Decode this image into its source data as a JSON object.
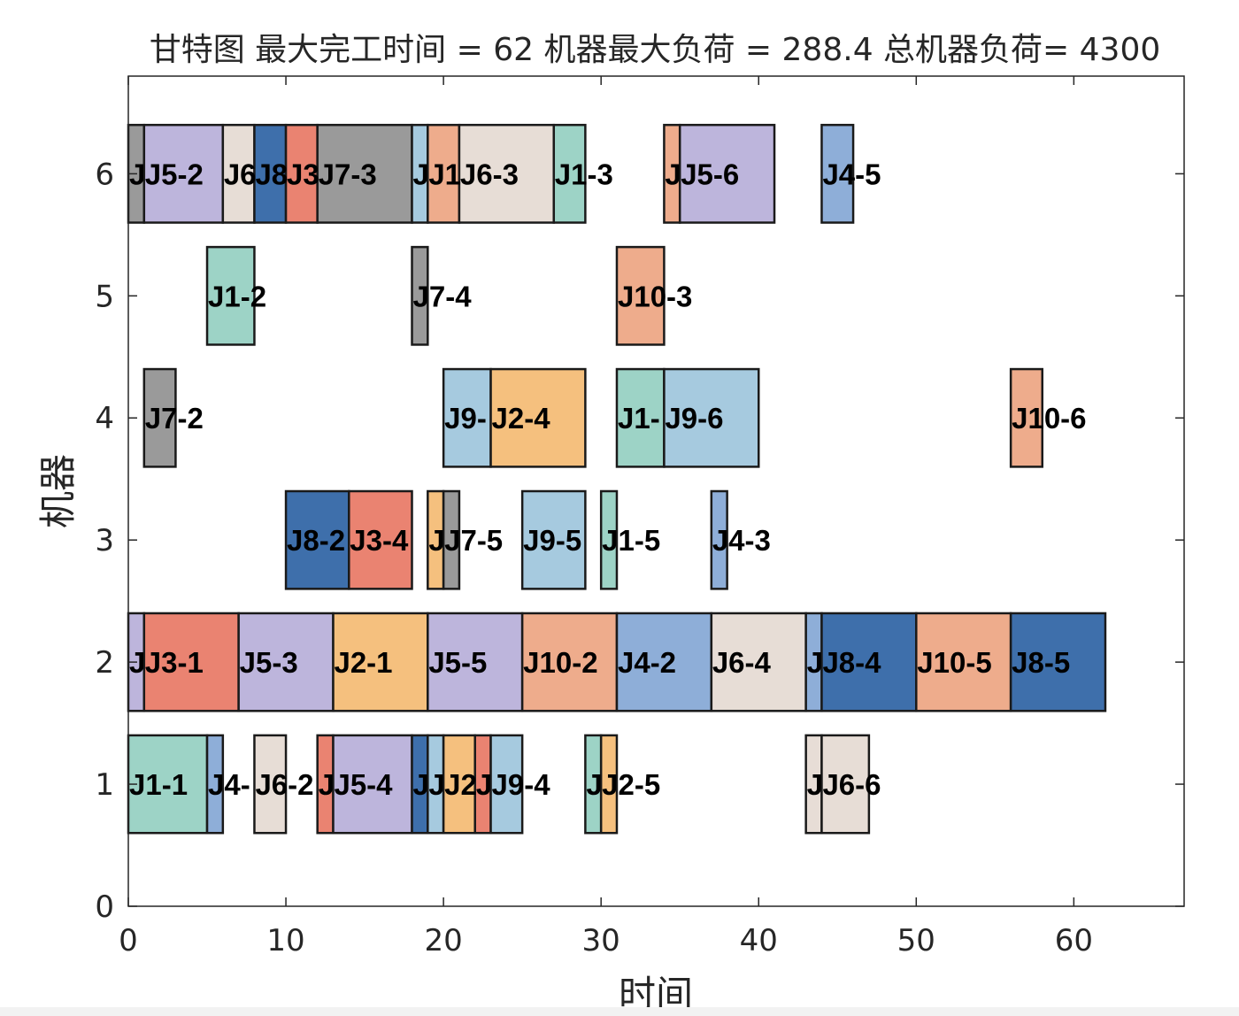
{
  "chart_data": {
    "type": "gantt",
    "title": "甘特图 最大完工时间 = 62 机器最大负荷 = 288.4 总机器负荷= 4300",
    "xlabel": "时间",
    "ylabel": "机器",
    "xlim": [
      0,
      67
    ],
    "ylim": [
      0,
      6.8
    ],
    "xticks": [
      "0",
      "10",
      "20",
      "30",
      "40",
      "50",
      "60"
    ],
    "yticks": [
      "0",
      "1",
      "2",
      "3",
      "4",
      "5",
      "6"
    ],
    "grid": false,
    "job_colors": {
      "J1": "#9dd3c6",
      "J2": "#f5c07e",
      "J3": "#ea8371",
      "J4": "#8eaed8",
      "J5": "#bdb5dc",
      "J6": "#e7ddd6",
      "J7": "#9a9a9a",
      "J8": "#3e6fab",
      "J9": "#a6cadf",
      "J10": "#eeac8c"
    },
    "tasks": [
      {
        "machine": 6,
        "job": "J7",
        "start": 0,
        "end": 1,
        "label": "J"
      },
      {
        "machine": 6,
        "job": "J5",
        "start": 1,
        "end": 6,
        "label": "J5-2"
      },
      {
        "machine": 6,
        "job": "J6",
        "start": 6,
        "end": 8,
        "label": "J6"
      },
      {
        "machine": 6,
        "job": "J8",
        "start": 8,
        "end": 10,
        "label": "J8"
      },
      {
        "machine": 6,
        "job": "J3",
        "start": 10,
        "end": 12,
        "label": "J3"
      },
      {
        "machine": 6,
        "job": "J7",
        "start": 12,
        "end": 18,
        "label": "J7-3"
      },
      {
        "machine": 6,
        "job": "J9",
        "start": 18,
        "end": 19,
        "label": "J"
      },
      {
        "machine": 6,
        "job": "J10",
        "start": 19,
        "end": 21,
        "label": "J1"
      },
      {
        "machine": 6,
        "job": "J6",
        "start": 21,
        "end": 27,
        "label": "J6-3"
      },
      {
        "machine": 6,
        "job": "J1",
        "start": 27,
        "end": 29,
        "label": "J1-3"
      },
      {
        "machine": 6,
        "job": "J10",
        "start": 34,
        "end": 35,
        "label": "J"
      },
      {
        "machine": 6,
        "job": "J5",
        "start": 35,
        "end": 41,
        "label": "J5-6"
      },
      {
        "machine": 6,
        "job": "J4",
        "start": 44,
        "end": 46,
        "label": "J4-5"
      },
      {
        "machine": 5,
        "job": "J1",
        "start": 5,
        "end": 8,
        "label": "J1-2"
      },
      {
        "machine": 5,
        "job": "J7",
        "start": 18,
        "end": 19,
        "label": "J7-4"
      },
      {
        "machine": 5,
        "job": "J10",
        "start": 31,
        "end": 34,
        "label": "J10-3"
      },
      {
        "machine": 4,
        "job": "J7",
        "start": 1,
        "end": 3,
        "label": "J7-2"
      },
      {
        "machine": 4,
        "job": "J9",
        "start": 20,
        "end": 23,
        "label": "J9-"
      },
      {
        "machine": 4,
        "job": "J2",
        "start": 23,
        "end": 29,
        "label": "J2-4"
      },
      {
        "machine": 4,
        "job": "J1",
        "start": 31,
        "end": 34,
        "label": "J1-"
      },
      {
        "machine": 4,
        "job": "J9",
        "start": 34,
        "end": 40,
        "label": "J9-6"
      },
      {
        "machine": 4,
        "job": "J10",
        "start": 56,
        "end": 58,
        "label": "J10-6"
      },
      {
        "machine": 3,
        "job": "J8",
        "start": 10,
        "end": 14,
        "label": "J8-2"
      },
      {
        "machine": 3,
        "job": "J3",
        "start": 14,
        "end": 18,
        "label": "J3-4"
      },
      {
        "machine": 3,
        "job": "J2",
        "start": 19,
        "end": 20,
        "label": "J"
      },
      {
        "machine": 3,
        "job": "J7",
        "start": 20,
        "end": 21,
        "label": "J7-5"
      },
      {
        "machine": 3,
        "job": "J9",
        "start": 25,
        "end": 29,
        "label": "J9-5"
      },
      {
        "machine": 3,
        "job": "J1",
        "start": 30,
        "end": 31,
        "label": "J1-5"
      },
      {
        "machine": 3,
        "job": "J4",
        "start": 37,
        "end": 38,
        "label": "J4-3"
      },
      {
        "machine": 2,
        "job": "J5",
        "start": 0,
        "end": 1,
        "label": "J"
      },
      {
        "machine": 2,
        "job": "J3",
        "start": 1,
        "end": 7,
        "label": "J3-1"
      },
      {
        "machine": 2,
        "job": "J5",
        "start": 7,
        "end": 13,
        "label": "J5-3"
      },
      {
        "machine": 2,
        "job": "J2",
        "start": 13,
        "end": 19,
        "label": "J2-1"
      },
      {
        "machine": 2,
        "job": "J5",
        "start": 19,
        "end": 25,
        "label": "J5-5"
      },
      {
        "machine": 2,
        "job": "J10",
        "start": 25,
        "end": 31,
        "label": "J10-2"
      },
      {
        "machine": 2,
        "job": "J4",
        "start": 31,
        "end": 37,
        "label": "J4-2"
      },
      {
        "machine": 2,
        "job": "J6",
        "start": 37,
        "end": 43,
        "label": "J6-4"
      },
      {
        "machine": 2,
        "job": "J4",
        "start": 43,
        "end": 44,
        "label": "J"
      },
      {
        "machine": 2,
        "job": "J8",
        "start": 44,
        "end": 50,
        "label": "J8-4"
      },
      {
        "machine": 2,
        "job": "J10",
        "start": 50,
        "end": 56,
        "label": "J10-5"
      },
      {
        "machine": 2,
        "job": "J8",
        "start": 56,
        "end": 62,
        "label": "J8-5"
      },
      {
        "machine": 1,
        "job": "J1",
        "start": 0,
        "end": 5,
        "label": "J1-1"
      },
      {
        "machine": 1,
        "job": "J4",
        "start": 5,
        "end": 6,
        "label": "J4-"
      },
      {
        "machine": 1,
        "job": "J6",
        "start": 8,
        "end": 10,
        "label": "J6-2"
      },
      {
        "machine": 1,
        "job": "J3",
        "start": 12,
        "end": 13,
        "label": "J"
      },
      {
        "machine": 1,
        "job": "J5",
        "start": 13,
        "end": 18,
        "label": "J5-4"
      },
      {
        "machine": 1,
        "job": "J8",
        "start": 18,
        "end": 19,
        "label": "J"
      },
      {
        "machine": 1,
        "job": "J9",
        "start": 19,
        "end": 20,
        "label": "J"
      },
      {
        "machine": 1,
        "job": "J2",
        "start": 20,
        "end": 22,
        "label": "J2"
      },
      {
        "machine": 1,
        "job": "J3",
        "start": 22,
        "end": 23,
        "label": "J"
      },
      {
        "machine": 1,
        "job": "J9",
        "start": 23,
        "end": 25,
        "label": "J9-4"
      },
      {
        "machine": 1,
        "job": "J1",
        "start": 29,
        "end": 30,
        "label": "J"
      },
      {
        "machine": 1,
        "job": "J2",
        "start": 30,
        "end": 31,
        "label": "J2-5"
      },
      {
        "machine": 1,
        "job": "J6",
        "start": 43,
        "end": 44,
        "label": "J"
      },
      {
        "machine": 1,
        "job": "J6",
        "start": 44,
        "end": 47,
        "label": "J6-6"
      }
    ]
  }
}
